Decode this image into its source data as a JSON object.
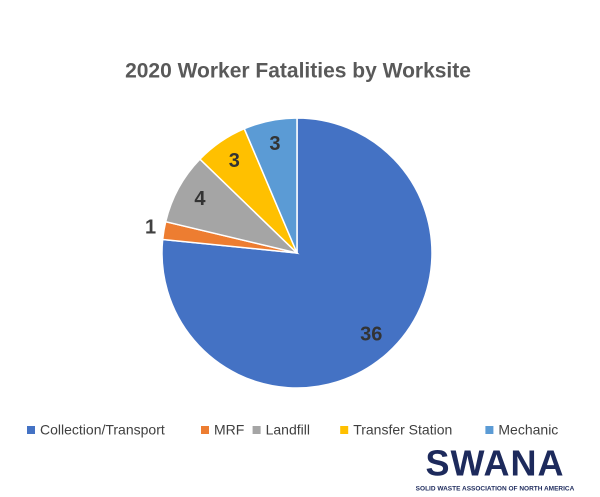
{
  "chart_data": {
    "type": "pie",
    "title": "2020 Worker Fatalities by Worksite",
    "categories": [
      "Collection/Transport",
      "MRF",
      "Landfill",
      "Transfer Station",
      "Mechanic"
    ],
    "values": [
      36,
      1,
      4,
      3,
      3
    ],
    "colors": [
      "#4472c4",
      "#ed7d31",
      "#a5a5a5",
      "#ffc000",
      "#5b9bd5"
    ],
    "legend": "bottom"
  },
  "logo": {
    "name": "SWANA",
    "tagline": "SOLID WASTE ASSOCIATION OF NORTH AMERICA"
  }
}
